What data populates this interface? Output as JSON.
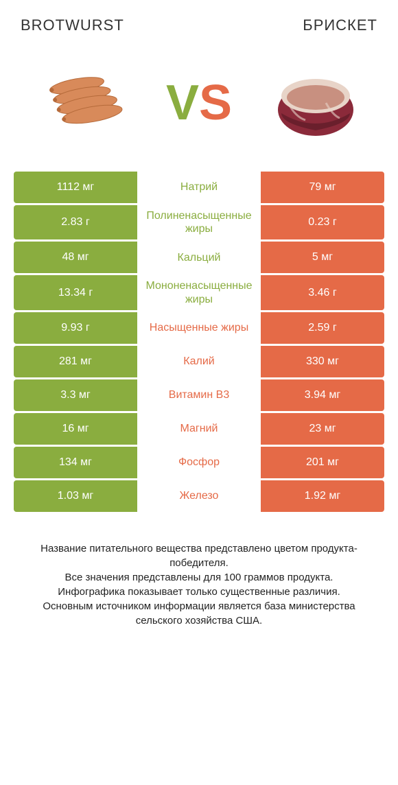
{
  "header": {
    "left_title": "BROTWURST",
    "right_title": "БРИСКЕТ",
    "vs_v": "V",
    "vs_s": "S"
  },
  "colors": {
    "green": "#8aad3f",
    "orange": "#e56a47",
    "sausage_fill": "#d88a5a",
    "sausage_dark": "#b56a3a",
    "brisket_red": "#8b2a3a",
    "brisket_dark": "#6a1f2c",
    "brisket_fat": "#e8d4c8"
  },
  "rows": [
    {
      "left": "1112 мг",
      "label": "Натрий",
      "right": "79 мг",
      "winner": "left"
    },
    {
      "left": "2.83 г",
      "label": "Полиненасыщенные жиры",
      "right": "0.23 г",
      "winner": "left"
    },
    {
      "left": "48 мг",
      "label": "Кальций",
      "right": "5 мг",
      "winner": "left"
    },
    {
      "left": "13.34 г",
      "label": "Мононенасыщенные жиры",
      "right": "3.46 г",
      "winner": "left"
    },
    {
      "left": "9.93 г",
      "label": "Насыщенные жиры",
      "right": "2.59 г",
      "winner": "right"
    },
    {
      "left": "281 мг",
      "label": "Калий",
      "right": "330 мг",
      "winner": "right"
    },
    {
      "left": "3.3 мг",
      "label": "Витамин B3",
      "right": "3.94 мг",
      "winner": "right"
    },
    {
      "left": "16 мг",
      "label": "Магний",
      "right": "23 мг",
      "winner": "right"
    },
    {
      "left": "134 мг",
      "label": "Фосфор",
      "right": "201 мг",
      "winner": "right"
    },
    {
      "left": "1.03 мг",
      "label": "Железо",
      "right": "1.92 мг",
      "winner": "right"
    }
  ],
  "footer": {
    "line1": "Название питательного вещества представлено цветом продукта-победителя.",
    "line2": "Все значения представлены для 100 граммов продукта.",
    "line3": "Инфографика показывает только существенные различия.",
    "line4": "Основным источником информации является база министерства сельского хозяйства США."
  }
}
